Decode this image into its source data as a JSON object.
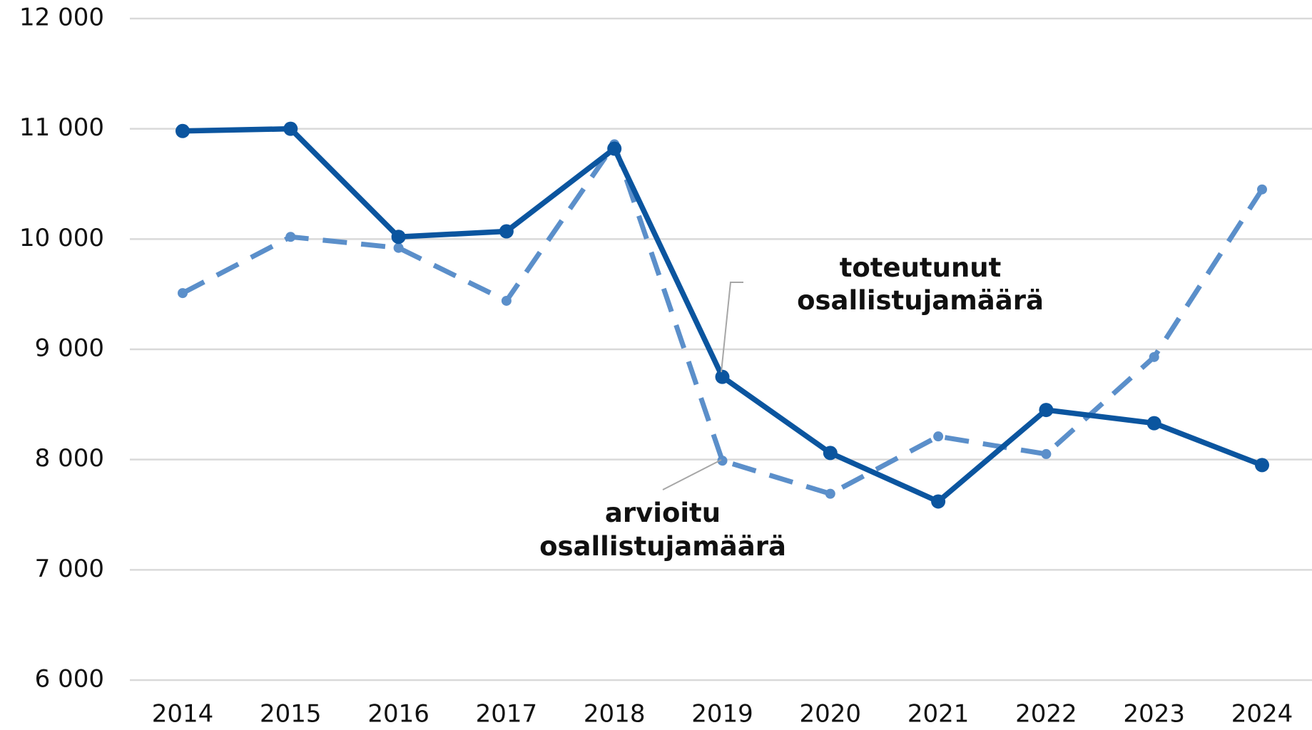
{
  "chart_data": {
    "type": "line",
    "categories": [
      "2014",
      "2015",
      "2016",
      "2017",
      "2018",
      "2019",
      "2020",
      "2021",
      "2022",
      "2023",
      "2024"
    ],
    "series": [
      {
        "name": [
          "toteutunut",
          "osallistujamäärä"
        ],
        "color": "#0b559f",
        "dash": false,
        "values": [
          10980,
          11000,
          10020,
          10070,
          10820,
          8750,
          8060,
          7620,
          8450,
          8330,
          7950
        ]
      },
      {
        "name": [
          "arvioitu",
          "osallistujamäärä"
        ],
        "color": "#5b8fca",
        "dash": true,
        "values": [
          9510,
          10020,
          9920,
          9440,
          10860,
          7990,
          7690,
          8210,
          8050,
          8930,
          10450
        ]
      }
    ],
    "ylim": [
      6000,
      12000
    ],
    "yticks": [
      {
        "value": 6000,
        "label": "6 000"
      },
      {
        "value": 7000,
        "label": "7 000"
      },
      {
        "value": 8000,
        "label": "8 000"
      },
      {
        "value": 9000,
        "label": "9 000"
      },
      {
        "value": 10000,
        "label": "10 000"
      },
      {
        "value": 11000,
        "label": "11 000"
      },
      {
        "value": 12000,
        "label": "12 000"
      }
    ],
    "grid": true
  }
}
